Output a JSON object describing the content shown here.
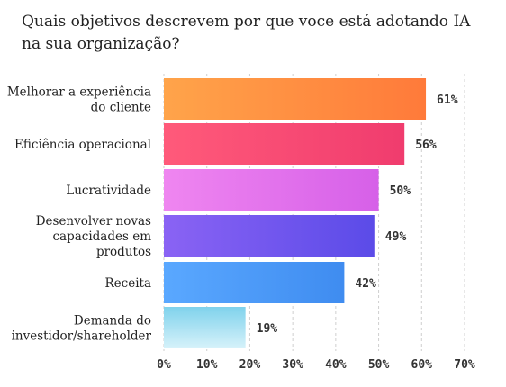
{
  "chart_data": {
    "type": "bar",
    "orientation": "horizontal",
    "title": "Quais objetivos descrevem por que voce está adotando IA na sua organização?",
    "categories": [
      "Melhorar a experiência do cliente",
      "Eficiência operacional",
      "Lucratividade",
      "Desenvolver novas capacidades em produtos",
      "Receita",
      "Demanda do investidor/shareholder"
    ],
    "values": [
      61,
      56,
      50,
      49,
      42,
      19
    ],
    "value_labels": [
      "61%",
      "56%",
      "50%",
      "49%",
      "42%",
      "19%"
    ],
    "xlim": [
      0,
      70
    ],
    "x_ticks": [
      "0%",
      "10%",
      "20%",
      "30%",
      "40%",
      "50%",
      "60%",
      "70%"
    ],
    "grid": true,
    "legend": "none",
    "bar_gradients": [
      [
        "#ffa44a",
        "#ff7a3a"
      ],
      [
        "#ff5a7a",
        "#f03c6e"
      ],
      [
        "#ef86f0",
        "#d660e8"
      ],
      [
        "#8a63f4",
        "#5b4be8"
      ],
      [
        "#5aa8ff",
        "#3f8cf0"
      ],
      [
        "#7fd2ec",
        "#d7f2fa"
      ]
    ]
  }
}
